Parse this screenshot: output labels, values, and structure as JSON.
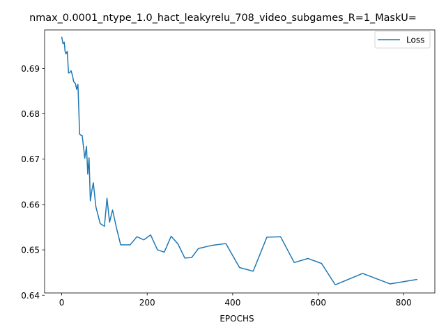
{
  "chart_data": {
    "type": "line",
    "title": "nmax_0.0001_ntype_1.0_hact_leakyrelu_708_video_subgames_R=1_MaskU=",
    "xlabel": "EPOCHS",
    "ylabel": "",
    "xlim": [
      -40,
      873
    ],
    "ylim": [
      0.6405,
      0.6985
    ],
    "xticks": [
      0,
      200,
      400,
      600,
      800
    ],
    "yticks": [
      0.64,
      0.65,
      0.66,
      0.67,
      0.68,
      0.69
    ],
    "ytick_labels": [
      "0.64",
      "0.65",
      "0.66",
      "0.67",
      "0.68",
      "0.69"
    ],
    "grid": false,
    "legend": "upper right",
    "series": [
      {
        "name": "Loss",
        "color": "#1f77b4",
        "x": [
          0,
          3,
          6,
          8,
          10,
          13,
          16,
          19,
          22,
          25,
          28,
          32,
          35,
          38,
          42,
          45,
          48,
          51,
          54,
          58,
          61,
          64,
          67,
          70,
          74,
          80,
          90,
          100,
          106,
          112,
          119,
          128,
          138,
          144,
          160,
          176,
          192,
          208,
          224,
          240,
          256,
          272,
          288,
          304,
          320,
          352,
          384,
          416,
          448,
          480,
          512,
          544,
          576,
          608,
          640,
          704,
          768,
          832
        ],
        "y": [
          0.697,
          0.6955,
          0.6958,
          0.6937,
          0.6932,
          0.6938,
          0.689,
          0.6891,
          0.6895,
          0.6885,
          0.6871,
          0.6867,
          0.6854,
          0.6865,
          0.6755,
          0.6753,
          0.6752,
          0.6727,
          0.6702,
          0.6728,
          0.6667,
          0.6703,
          0.6608,
          0.6628,
          0.6648,
          0.6595,
          0.6558,
          0.6552,
          0.6614,
          0.6561,
          0.6588,
          0.6549,
          0.6511,
          0.6511,
          0.6511,
          0.6529,
          0.6522,
          0.6533,
          0.65,
          0.6495,
          0.653,
          0.6513,
          0.6482,
          0.6483,
          0.6503,
          0.651,
          0.6514,
          0.6461,
          0.6453,
          0.6528,
          0.6529,
          0.6472,
          0.6481,
          0.647,
          0.6423,
          0.6448,
          0.6425,
          0.6435
        ]
      }
    ]
  }
}
